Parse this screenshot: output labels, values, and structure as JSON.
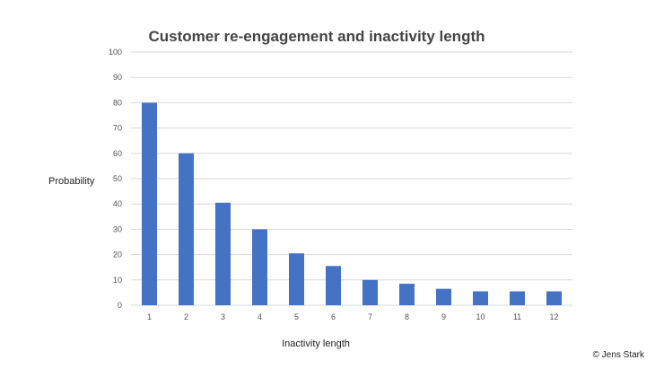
{
  "chart_data": {
    "type": "bar",
    "title": "Customer re-engagement and inactivity length",
    "xlabel": "Inactivity length",
    "ylabel": "Probability",
    "categories": [
      "1",
      "2",
      "3",
      "4",
      "5",
      "6",
      "7",
      "8",
      "9",
      "10",
      "11",
      "12"
    ],
    "values": [
      80,
      60,
      40.5,
      30,
      20.5,
      15.5,
      10,
      8.5,
      6.5,
      5.5,
      5.5,
      5.5
    ],
    "ylim": [
      0,
      100
    ],
    "yticks": [
      0,
      10,
      20,
      30,
      40,
      50,
      60,
      70,
      80,
      90,
      100
    ],
    "grid": true,
    "bar_color": "#4472C4",
    "grid_color": "#d9d9d9"
  },
  "footer": {
    "copyright": "© Jens Stark"
  }
}
